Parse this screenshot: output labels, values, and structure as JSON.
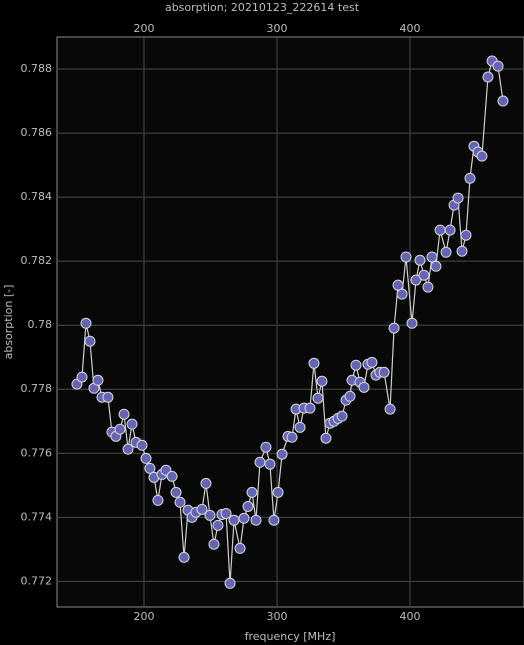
{
  "chart_data": {
    "type": "line",
    "title": "absorption; 20210123_222614 test",
    "xlabel": "frequency [MHz]",
    "ylabel": "absorption [-]",
    "x": [
      149.6,
      153.4,
      156.4,
      159.4,
      162.4,
      165.4,
      168.4,
      172.9,
      175.9,
      178.9,
      182.0,
      185.0,
      188.0,
      191.0,
      194.0,
      198.5,
      201.5,
      204.5,
      207.5,
      210.5,
      213.5,
      216.5,
      221.1,
      224.1,
      227.1,
      230.1,
      233.1,
      236.1,
      239.1,
      243.6,
      246.6,
      249.6,
      252.6,
      255.6,
      258.6,
      261.7,
      264.7,
      267.7,
      272.2,
      275.2,
      278.2,
      281.2,
      284.2,
      287.2,
      291.7,
      294.7,
      297.7,
      300.8,
      303.8,
      308.3,
      311.3,
      314.3,
      317.3,
      320.3,
      324.8,
      327.8,
      330.8,
      333.8,
      336.8,
      339.8,
      342.9,
      345.9,
      348.9,
      351.9,
      354.9,
      356.4,
      359.4,
      362.4,
      365.4,
      368.4,
      371.4,
      374.4,
      377.4,
      380.5,
      385.0,
      388.0,
      391.0,
      394.0,
      397.0,
      401.5,
      404.5,
      407.5,
      410.5,
      413.5,
      416.5,
      419.5,
      422.6,
      427.1,
      430.1,
      433.1,
      436.1,
      439.1,
      442.1,
      445.1,
      448.1,
      451.1,
      454.1,
      458.6,
      461.7,
      466.2,
      469.9
    ],
    "series": [
      {
        "color": "#6464b4",
        "line_color": "#cfcfcf",
        "values": [
          0.77816,
          0.77838,
          0.78006,
          0.7795,
          0.77803,
          0.77828,
          0.77775,
          0.77775,
          0.77666,
          0.77653,
          0.77675,
          0.77722,
          0.77613,
          0.77691,
          0.77634,
          0.77625,
          0.77584,
          0.77553,
          0.77525,
          0.77453,
          0.77534,
          0.77547,
          0.77528,
          0.77478,
          0.77447,
          0.77275,
          0.77422,
          0.774,
          0.77416,
          0.77425,
          0.77506,
          0.77406,
          0.77316,
          0.77375,
          0.77409,
          0.77412,
          0.77194,
          0.77391,
          0.77303,
          0.77397,
          0.77434,
          0.77478,
          0.77391,
          0.77572,
          0.77619,
          0.77566,
          0.77391,
          0.77478,
          0.77597,
          0.77653,
          0.7765,
          0.77738,
          0.77681,
          0.77741,
          0.77741,
          0.77881,
          0.77772,
          0.77825,
          0.77647,
          0.77694,
          0.777,
          0.77709,
          0.77716,
          0.77766,
          0.77778,
          0.77828,
          0.77875,
          0.77822,
          0.77806,
          0.77878,
          0.77884,
          0.77844,
          0.77853,
          0.77853,
          0.77738,
          0.77991,
          0.78125,
          0.78097,
          0.78213,
          0.78006,
          0.78141,
          0.78203,
          0.78156,
          0.78119,
          0.78213,
          0.78184,
          0.78297,
          0.78228,
          0.78297,
          0.78375,
          0.78397,
          0.78231,
          0.78281,
          0.78459,
          0.78559,
          0.78541,
          0.78528,
          0.78775,
          0.78825,
          0.78809,
          0.787
        ]
      }
    ],
    "xlim": [
      134.6,
      485.7
    ],
    "ylim": [
      0.7712,
      0.789
    ],
    "xticks": [
      200,
      300,
      400
    ],
    "yticks": [
      0.772,
      0.774,
      0.776,
      0.778,
      0.78,
      0.782,
      0.784,
      0.786,
      0.788
    ],
    "grid": true
  }
}
